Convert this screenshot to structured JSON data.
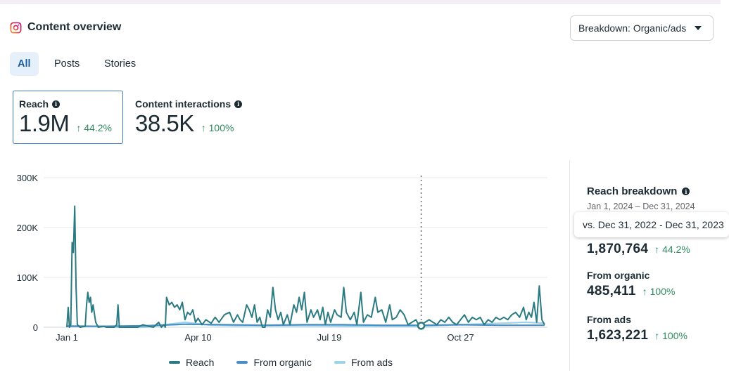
{
  "header": {
    "title": "Content overview",
    "icon": "instagram-icon"
  },
  "breakdown_dropdown": {
    "label": "Breakdown: Organic/ads"
  },
  "tabs": [
    {
      "label": "All",
      "active": true
    },
    {
      "label": "Posts",
      "active": false
    },
    {
      "label": "Stories",
      "active": false
    }
  ],
  "metrics": {
    "reach": {
      "label": "Reach",
      "value": "1.9M",
      "change": "↑ 44.2%"
    },
    "interactions": {
      "label": "Content interactions",
      "value": "38.5K",
      "change": "↑ 100%"
    }
  },
  "reach_breakdown": {
    "title": "Reach breakdown",
    "date_range": "Jan 1, 2024 – Dec 31, 2024",
    "comparison_tooltip": "vs. Dec 31, 2022 - Dec 31, 2023",
    "total": {
      "value": "1,870,764",
      "change": "↑ 44.2%"
    },
    "organic": {
      "label": "From organic",
      "value": "485,411",
      "change": "↑ 100%"
    },
    "ads": {
      "label": "From ads",
      "value": "1,623,221",
      "change": "↑ 100%"
    }
  },
  "colors": {
    "reach": "#2a7a82",
    "organic": "#4a8fc4",
    "ads": "#9dd3ea",
    "positive": "#2e8a5e",
    "selected_border": "#3b7bbf"
  },
  "chart_data": {
    "type": "line",
    "y_ticks": [
      "0",
      "100K",
      "200K",
      "300K"
    ],
    "ylim": [
      0,
      300000
    ],
    "x_ticks": [
      {
        "label": "Jan 1",
        "day": 0
      },
      {
        "label": "Apr 10",
        "day": 100
      },
      {
        "label": "Jul 19",
        "day": 200
      },
      {
        "label": "Oct 27",
        "day": 300
      }
    ],
    "x_days_total": 365,
    "marker_day": 270,
    "grid": true,
    "legend_position": "bottom",
    "series": [
      {
        "name": "Reach",
        "color": "#2a7a82",
        "points": [
          [
            0,
            0
          ],
          [
            1,
            40000
          ],
          [
            2,
            0
          ],
          [
            3,
            5000
          ],
          [
            4,
            170000
          ],
          [
            5,
            150000
          ],
          [
            6,
            243000
          ],
          [
            7,
            80000
          ],
          [
            8,
            5000
          ],
          [
            10,
            0
          ],
          [
            14,
            2000
          ],
          [
            15,
            45000
          ],
          [
            16,
            70000
          ],
          [
            17,
            50000
          ],
          [
            18,
            60000
          ],
          [
            19,
            30000
          ],
          [
            20,
            45000
          ],
          [
            22,
            10000
          ],
          [
            24,
            0
          ],
          [
            28,
            2000
          ],
          [
            30,
            0
          ],
          [
            32,
            0
          ],
          [
            34,
            0
          ],
          [
            36,
            0
          ],
          [
            38,
            5000
          ],
          [
            39,
            45000
          ],
          [
            40,
            0
          ],
          [
            44,
            0
          ],
          [
            50,
            0
          ],
          [
            54,
            0
          ],
          [
            58,
            5000
          ],
          [
            62,
            2000
          ],
          [
            66,
            0
          ],
          [
            70,
            10000
          ],
          [
            72,
            0
          ],
          [
            74,
            5000
          ],
          [
            75,
            0
          ],
          [
            76,
            60000
          ],
          [
            78,
            45000
          ],
          [
            80,
            50000
          ],
          [
            82,
            40000
          ],
          [
            84,
            45000
          ],
          [
            86,
            35000
          ],
          [
            88,
            50000
          ],
          [
            90,
            15000
          ],
          [
            92,
            30000
          ],
          [
            94,
            25000
          ],
          [
            96,
            35000
          ],
          [
            98,
            10000
          ],
          [
            100,
            18000
          ],
          [
            103,
            5000
          ],
          [
            106,
            15000
          ],
          [
            110,
            8000
          ],
          [
            113,
            20000
          ],
          [
            116,
            10000
          ],
          [
            120,
            25000
          ],
          [
            124,
            30000
          ],
          [
            127,
            10000
          ],
          [
            130,
            25000
          ],
          [
            132,
            15000
          ],
          [
            134,
            10000
          ],
          [
            137,
            45000
          ],
          [
            139,
            35000
          ],
          [
            141,
            20000
          ],
          [
            143,
            45000
          ],
          [
            145,
            10000
          ],
          [
            147,
            20000
          ],
          [
            149,
            0
          ],
          [
            151,
            0
          ],
          [
            153,
            35000
          ],
          [
            155,
            20000
          ],
          [
            157,
            80000
          ],
          [
            159,
            35000
          ],
          [
            161,
            15000
          ],
          [
            163,
            30000
          ],
          [
            165,
            5000
          ],
          [
            168,
            25000
          ],
          [
            170,
            5000
          ],
          [
            173,
            45000
          ],
          [
            175,
            30000
          ],
          [
            177,
            60000
          ],
          [
            179,
            35000
          ],
          [
            181,
            70000
          ],
          [
            183,
            10000
          ],
          [
            186,
            35000
          ],
          [
            188,
            20000
          ],
          [
            191,
            35000
          ],
          [
            193,
            15000
          ],
          [
            195,
            40000
          ],
          [
            197,
            5000
          ],
          [
            199,
            30000
          ],
          [
            201,
            10000
          ],
          [
            204,
            35000
          ],
          [
            206,
            25000
          ],
          [
            209,
            20000
          ],
          [
            211,
            80000
          ],
          [
            213,
            30000
          ],
          [
            216,
            15000
          ],
          [
            219,
            30000
          ],
          [
            221,
            5000
          ],
          [
            224,
            70000
          ],
          [
            226,
            10000
          ],
          [
            229,
            25000
          ],
          [
            232,
            20000
          ],
          [
            235,
            60000
          ],
          [
            237,
            30000
          ],
          [
            240,
            35000
          ],
          [
            243,
            10000
          ],
          [
            246,
            45000
          ],
          [
            248,
            15000
          ],
          [
            251,
            20000
          ],
          [
            254,
            35000
          ],
          [
            257,
            25000
          ],
          [
            260,
            5000
          ],
          [
            263,
            10000
          ],
          [
            266,
            15000
          ],
          [
            268,
            5000
          ],
          [
            270,
            5000
          ],
          [
            273,
            10000
          ],
          [
            276,
            15000
          ],
          [
            279,
            10000
          ],
          [
            282,
            5000
          ],
          [
            285,
            15000
          ],
          [
            288,
            10000
          ],
          [
            291,
            20000
          ],
          [
            294,
            10000
          ],
          [
            297,
            5000
          ],
          [
            300,
            15000
          ],
          [
            303,
            25000
          ],
          [
            306,
            10000
          ],
          [
            309,
            20000
          ],
          [
            312,
            15000
          ],
          [
            315,
            20000
          ],
          [
            318,
            5000
          ],
          [
            321,
            15000
          ],
          [
            324,
            10000
          ],
          [
            327,
            20000
          ],
          [
            330,
            15000
          ],
          [
            333,
            20000
          ],
          [
            336,
            15000
          ],
          [
            339,
            25000
          ],
          [
            342,
            30000
          ],
          [
            345,
            20000
          ],
          [
            348,
            40000
          ],
          [
            350,
            15000
          ],
          [
            352,
            30000
          ],
          [
            354,
            20000
          ],
          [
            356,
            50000
          ],
          [
            358,
            10000
          ],
          [
            360,
            83000
          ],
          [
            362,
            15000
          ],
          [
            364,
            5000
          ]
        ]
      },
      {
        "name": "From organic",
        "color": "#4a8fc4",
        "points": [
          [
            0,
            2000
          ],
          [
            30,
            2000
          ],
          [
            60,
            3000
          ],
          [
            90,
            6000
          ],
          [
            120,
            5000
          ],
          [
            150,
            4000
          ],
          [
            180,
            5000
          ],
          [
            210,
            5000
          ],
          [
            240,
            4000
          ],
          [
            270,
            4000
          ],
          [
            300,
            5000
          ],
          [
            330,
            4000
          ],
          [
            364,
            4000
          ]
        ]
      },
      {
        "name": "From ads",
        "color": "#9dd3ea",
        "points": [
          [
            0,
            3000
          ],
          [
            20,
            2000
          ],
          [
            40,
            0
          ],
          [
            60,
            0
          ],
          [
            75,
            5000
          ],
          [
            90,
            10000
          ],
          [
            110,
            4000
          ],
          [
            130,
            3000
          ],
          [
            160,
            3000
          ],
          [
            190,
            3000
          ],
          [
            220,
            2000
          ],
          [
            250,
            2000
          ],
          [
            270,
            2000
          ],
          [
            300,
            5000
          ],
          [
            330,
            8000
          ],
          [
            350,
            10000
          ],
          [
            364,
            8000
          ]
        ]
      }
    ]
  }
}
